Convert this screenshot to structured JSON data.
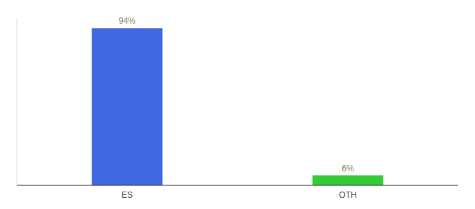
{
  "chart_data": {
    "type": "bar",
    "categories": [
      "ES",
      "OTH"
    ],
    "values": [
      94,
      6
    ],
    "value_labels": [
      "94%",
      "6%"
    ],
    "colors": [
      "#4169e1",
      "#33cc33"
    ],
    "ylim": [
      0,
      100
    ],
    "data_labels": true,
    "tick_labels": "x",
    "grid": false
  }
}
